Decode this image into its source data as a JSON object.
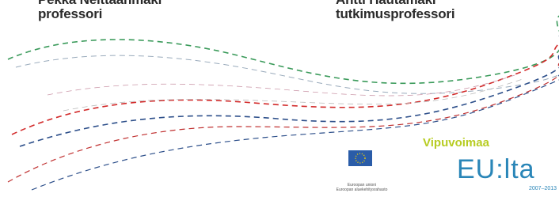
{
  "people": [
    {
      "name": "Pekka Neittaanmäki",
      "title": "professori"
    },
    {
      "name": "Antti Hautamäki",
      "title": "tutkimusprofessori"
    }
  ],
  "logos": {
    "eu_caption": [
      "Euroopan unioni",
      "Euroopan aluekehitysrahasto"
    ],
    "slogan": "Vipuvoimaa",
    "eu_text": "EU:lta",
    "period": "2007–2013"
  }
}
